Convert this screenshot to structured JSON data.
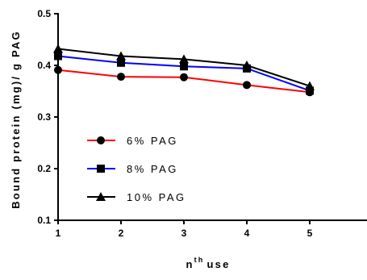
{
  "chart_data": {
    "type": "line",
    "title": "",
    "xlabel_base": "n",
    "xlabel_sup": "th",
    "xlabel_rest": "use",
    "ylabel": "Bound protein (mg)/ g PAG",
    "x": [
      1,
      2,
      3,
      4,
      5
    ],
    "xlim": [
      1,
      6
    ],
    "ylim": [
      0.1,
      0.5
    ],
    "xticks": [
      "1",
      "2",
      "3",
      "4",
      "5"
    ],
    "yticks": [
      "0.1",
      "0.2",
      "0.3",
      "0.4",
      "0.5"
    ],
    "ytick_values": [
      0.1,
      0.2,
      0.3,
      0.4,
      0.5
    ],
    "grid": false,
    "legend_position": "lower-left",
    "series": [
      {
        "name": "6% PAG",
        "color": "#ff0000",
        "marker": "circle",
        "values": [
          0.391,
          0.378,
          0.377,
          0.362,
          0.348
        ]
      },
      {
        "name": "8% PAG",
        "color": "#0000ff",
        "marker": "square",
        "values": [
          0.418,
          0.405,
          0.398,
          0.394,
          0.351
        ]
      },
      {
        "name": "10% PAG",
        "color": "#000000",
        "marker": "triangle",
        "values": [
          0.432,
          0.418,
          0.412,
          0.4,
          0.36
        ]
      }
    ]
  }
}
